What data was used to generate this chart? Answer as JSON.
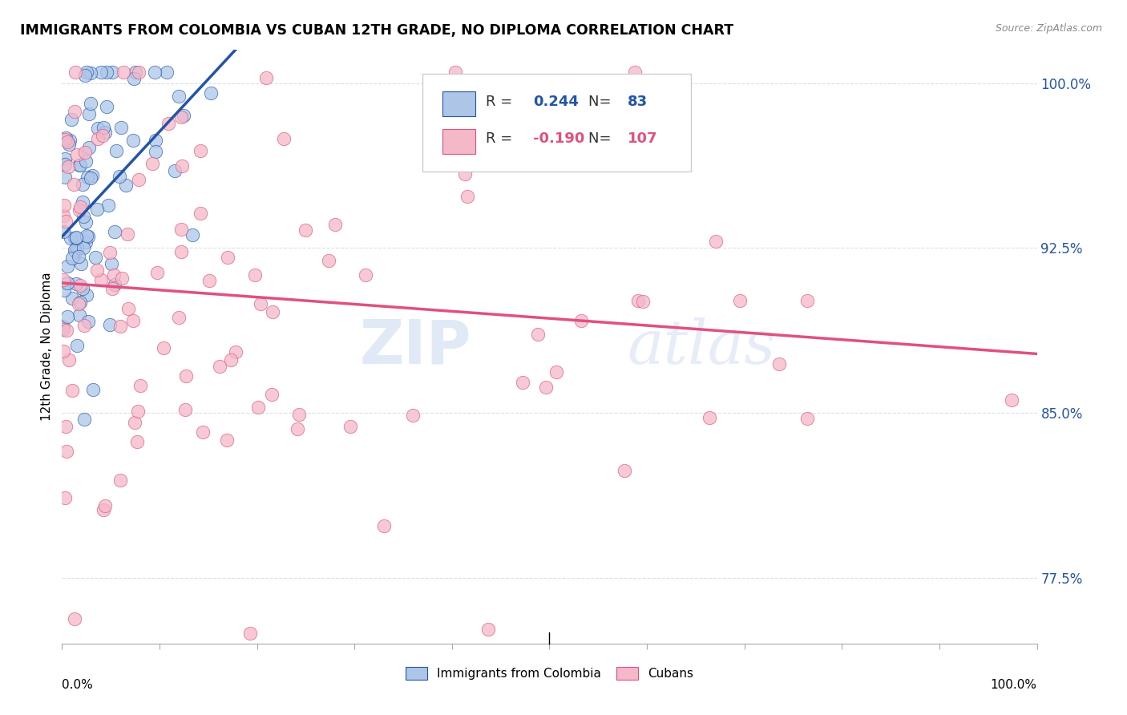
{
  "title": "IMMIGRANTS FROM COLOMBIA VS CUBAN 12TH GRADE, NO DIPLOMA CORRELATION CHART",
  "source": "Source: ZipAtlas.com",
  "ylabel": "12th Grade, No Diploma",
  "legend_label1": "Immigrants from Colombia",
  "legend_label2": "Cubans",
  "R1": 0.244,
  "N1": 83,
  "R2": -0.19,
  "N2": 107,
  "color1": "#adc6e8",
  "color2": "#f4b8c8",
  "line_color1": "#2255aa",
  "line_color2": "#e05080",
  "dashed_color": "#aabbdd",
  "watermark_zip": "ZIP",
  "watermark_atlas": "atlas",
  "xlim": [
    0.0,
    1.0
  ],
  "ylim": [
    0.745,
    1.015
  ],
  "ytick_values": [
    0.775,
    0.85,
    0.925,
    1.0
  ],
  "ytick_labels": [
    "77.5%",
    "85.0%",
    "92.5%",
    "100.0%"
  ],
  "grid_color": "#ddddee",
  "bg_color": "#ffffff"
}
